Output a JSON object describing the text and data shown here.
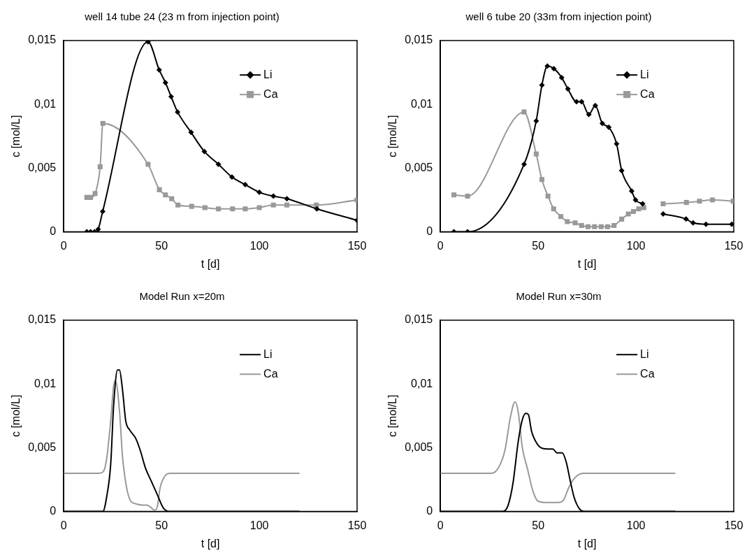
{
  "chart_data": [
    {
      "type": "line",
      "title": "well 14 tube 24 (23 m from injection point)",
      "xlabel": "t [d]",
      "ylabel": "c [mol/L]",
      "xlim": [
        0,
        150
      ],
      "xticks": [
        0,
        50,
        100,
        150
      ],
      "ylim": [
        0,
        0.015
      ],
      "yticks": [
        {
          "value": 0,
          "label": "0"
        },
        {
          "value": 0.005,
          "label": "0,005"
        },
        {
          "value": 0.01,
          "label": "0,01"
        },
        {
          "value": 0.015,
          "label": "0,015"
        }
      ],
      "grid": false,
      "legend": "top right",
      "series": [
        {
          "name": "Li",
          "color": "#000000",
          "marker": "diamond",
          "x": [
            11.8,
            13.7,
            15.7,
            17.6,
            19.9,
            43.1,
            48.8,
            52,
            54.9,
            58.2,
            65.1,
            71.9,
            79.1,
            86,
            92.8,
            100,
            107.2,
            114.1,
            129.4,
            150
          ],
          "values": [
            0,
            0,
            0,
            0.0002,
            0.0016,
            0.0149,
            0.0127,
            0.0117,
            0.0106,
            0.0094,
            0.0078,
            0.0063,
            0.0053,
            0.0043,
            0.0037,
            0.0031,
            0.0028,
            0.0026,
            0.0018,
            0.0009
          ]
        },
        {
          "name": "Ca",
          "color": "#999999",
          "marker": "square",
          "x": [
            11.8,
            13.7,
            16,
            18.6,
            20,
            43.1,
            48.9,
            52,
            55.2,
            58.4,
            65.4,
            72.2,
            79.1,
            86.3,
            92.8,
            100,
            107.2,
            114.1,
            129.2,
            150
          ],
          "values": [
            0.0027,
            0.0027,
            0.003,
            0.0051,
            0.0085,
            0.0053,
            0.0033,
            0.0029,
            0.0026,
            0.0021,
            0.002,
            0.0019,
            0.0018,
            0.0018,
            0.0018,
            0.0019,
            0.0021,
            0.0021,
            0.0021,
            0.0025
          ]
        }
      ]
    },
    {
      "type": "line",
      "title": "well 6 tube 20 (33m from injection point)",
      "xlabel": "t [d]",
      "ylabel": "c [mol/L]",
      "xlim": [
        0,
        150
      ],
      "xticks": [
        0,
        50,
        100,
        150
      ],
      "ylim": [
        0,
        0.015
      ],
      "yticks": [
        {
          "value": 0,
          "label": "0"
        },
        {
          "value": 0.005,
          "label": "0,005"
        },
        {
          "value": 0.01,
          "label": "0,01"
        },
        {
          "value": 0.015,
          "label": "0,015"
        }
      ],
      "grid": false,
      "legend": "top right",
      "series": [
        {
          "name": "Li",
          "color": "#000000",
          "marker": "diamond",
          "x": [
            6.9,
            13.9,
            42.8,
            49,
            51.9,
            54.7,
            58,
            62,
            65.2,
            69.6,
            72.2,
            75.9,
            79.2,
            82.8,
            86.1,
            90.1,
            92.7,
            97.8,
            99.8,
            103.4,
            108,
            113.9,
            125.6,
            129.2,
            135.8,
            149
          ],
          "values": [
            0,
            0,
            0.0053,
            0.0087,
            0.0115,
            0.013,
            0.0128,
            0.0121,
            0.0112,
            0.0102,
            0.0102,
            0.0092,
            0.0099,
            0.0085,
            0.0082,
            0.0069,
            0.0048,
            0.0032,
            0.0025,
            0.0022,
            null,
            0.0014,
            0.001,
            0.0007,
            0.0006,
            0.0006
          ]
        },
        {
          "name": "Ca",
          "color": "#999999",
          "marker": "square",
          "x": [
            6.9,
            13.9,
            42.8,
            49,
            51.9,
            55,
            57.9,
            61.6,
            64.9,
            68.9,
            72.2,
            75.5,
            78.8,
            82.2,
            85.5,
            88.8,
            92.7,
            96.1,
            98.7,
            101.4,
            104,
            108,
            113.9,
            125.8,
            132.5,
            139.1,
            149.7
          ],
          "values": [
            0.0029,
            0.0028,
            0.0094,
            0.0061,
            0.0041,
            0.0028,
            0.0018,
            0.0012,
            0.0008,
            0.0007,
            0.0005,
            0.0004,
            0.0004,
            0.0004,
            0.0004,
            0.0005,
            0.001,
            0.0014,
            0.0016,
            0.0018,
            0.0019,
            null,
            0.0022,
            0.0023,
            0.0024,
            0.0025,
            0.0024
          ]
        }
      ]
    },
    {
      "type": "line",
      "title": "Model Run x=20m",
      "xlabel": "t [d]",
      "ylabel": "c [mol/L]",
      "xlim": [
        0,
        150
      ],
      "xticks": [
        0,
        50,
        100,
        150
      ],
      "ylim": [
        0,
        0.015
      ],
      "yticks": [
        {
          "value": 0,
          "label": "0"
        },
        {
          "value": 0.005,
          "label": "0,005"
        },
        {
          "value": 0.01,
          "label": "0,01"
        },
        {
          "value": 0.015,
          "label": "0,015"
        }
      ],
      "grid": false,
      "legend": "top right",
      "marker": "none",
      "series": [
        {
          "name": "Li",
          "color": "#000000",
          "x": [
            0,
            20,
            22,
            24,
            25.5,
            27.5,
            28.5,
            30,
            31.7,
            33.7,
            36.9,
            39.1,
            41.8,
            44.7,
            47.9,
            50.8,
            53.8,
            120.5
          ],
          "values": [
            0,
            0,
            0.0012,
            0.0037,
            0.0083,
            0.0111,
            0.0111,
            0.0096,
            0.0071,
            0.0064,
            0.0057,
            0.0048,
            0.0034,
            0.0024,
            0.0013,
            0.0003,
            0,
            0
          ]
        },
        {
          "name": "Ca",
          "color": "#999999",
          "x": [
            0,
            18.1,
            20.5,
            22,
            24,
            26,
            26.5,
            28.5,
            30,
            32.1,
            34.3,
            36.9,
            40.2,
            42.7,
            44.7,
            46.4,
            47.9,
            49.2,
            51.8,
            54.4,
            120.5
          ],
          "values": [
            0.003,
            0.003,
            0.0032,
            0.0042,
            0.0071,
            0.0102,
            0.0102,
            0.0079,
            0.0044,
            0.0019,
            0.0008,
            0.0006,
            0.0005,
            0.0005,
            0.0003,
            0.0001,
            0.0004,
            0.0018,
            0.0028,
            0.003,
            0.003
          ]
        }
      ]
    },
    {
      "type": "line",
      "title": "Model Run x=30m",
      "xlabel": "t [d]",
      "ylabel": "c [mol/L]",
      "xlim": [
        0,
        150
      ],
      "xticks": [
        0,
        50,
        100,
        150
      ],
      "ylim": [
        0,
        0.015
      ],
      "yticks": [
        {
          "value": 0,
          "label": "0"
        },
        {
          "value": 0.005,
          "label": "0,005"
        },
        {
          "value": 0.01,
          "label": "0,01"
        },
        {
          "value": 0.015,
          "label": "0,015"
        }
      ],
      "grid": false,
      "legend": "top right",
      "marker": "none",
      "series": [
        {
          "name": "Li",
          "color": "#000000",
          "x": [
            0,
            31.7,
            34.4,
            37.1,
            39.8,
            41.9,
            43.7,
            45,
            46.6,
            48.7,
            51.4,
            54.8,
            57.5,
            59.6,
            62.3,
            64.3,
            66.4,
            68.4,
            71.1,
            73.8,
            120.1
          ],
          "values": [
            0,
            0,
            0.0004,
            0.0022,
            0.0055,
            0.0072,
            0.0077,
            0.0076,
            0.0063,
            0.0055,
            0.005,
            0.0049,
            0.0049,
            0.0046,
            0.0046,
            0.0039,
            0.0024,
            0.0011,
            0.0002,
            0,
            0
          ]
        },
        {
          "name": "Ca",
          "color": "#999999",
          "x": [
            0,
            26.2,
            29.6,
            33,
            35.8,
            38.2,
            39.8,
            41.9,
            44.6,
            47.3,
            50,
            54.8,
            60.2,
            63,
            65.7,
            69.1,
            73.2,
            120.1
          ],
          "values": [
            0.003,
            0.003,
            0.0034,
            0.0048,
            0.0074,
            0.0086,
            0.0078,
            0.005,
            0.0033,
            0.0016,
            0.0008,
            0.0007,
            0.0007,
            0.0009,
            0.0019,
            0.0027,
            0.003,
            0.003
          ]
        }
      ]
    }
  ]
}
